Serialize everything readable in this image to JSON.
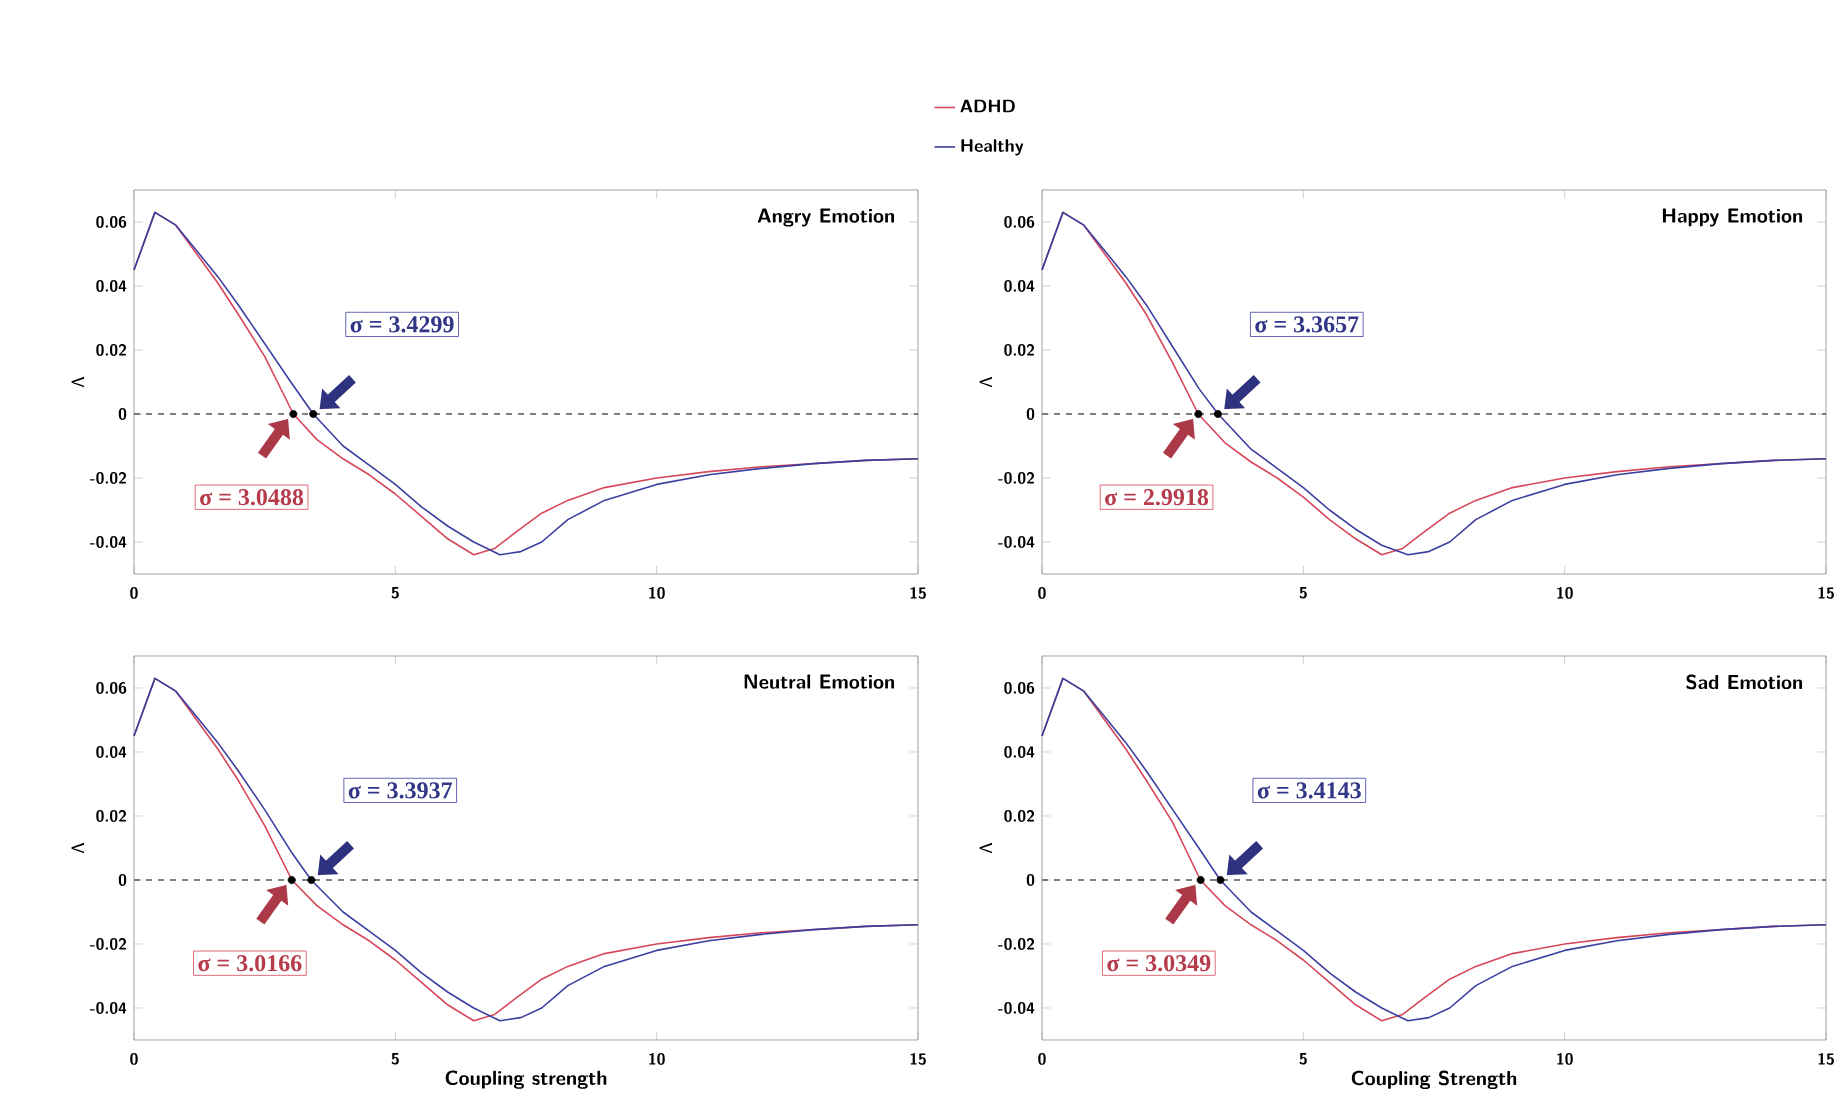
{
  "chart_data": [
    {
      "type": "line",
      "title": "Angry Emotion",
      "ylabel": "Λ",
      "xlim": [
        0,
        15
      ],
      "ylim": [
        -0.05,
        0.07
      ],
      "xticks": [
        0,
        5,
        10,
        15
      ],
      "yticks": [
        -0.04,
        -0.02,
        0,
        0.02,
        0.04,
        0.06
      ],
      "legend": "top",
      "marker": "none",
      "line_style": "solid",
      "ref_lines": [
        {
          "axis": "y",
          "value": 0,
          "color": "#555555",
          "line_style": "dashed"
        }
      ],
      "annotations": [
        "σ = 3.0488",
        "σ = 3.4299"
      ],
      "series": [
        {
          "name": "ADHD",
          "color": "#d6475a",
          "x": [
            0,
            0.4,
            0.8,
            1.2,
            1.6,
            2.0,
            2.5,
            3.05,
            3.5,
            4,
            4.5,
            5,
            5.5,
            6,
            6.5,
            6.9,
            7.3,
            7.8,
            8.3,
            9,
            10,
            11,
            12,
            13,
            14,
            15
          ],
          "values": [
            0.045,
            0.063,
            0.059,
            0.05,
            0.041,
            0.031,
            0.018,
            0,
            -0.008,
            -0.014,
            -0.019,
            -0.025,
            -0.032,
            -0.039,
            -0.044,
            -0.042,
            -0.037,
            -0.031,
            -0.027,
            -0.023,
            -0.02,
            -0.018,
            -0.0165,
            -0.0155,
            -0.0145,
            -0.014
          ]
        },
        {
          "name": "Healthy",
          "color": "#3b3f9f",
          "x": [
            0,
            0.4,
            0.8,
            1.2,
            1.6,
            2.0,
            2.5,
            3.0,
            3.43,
            4,
            4.5,
            5,
            5.5,
            6,
            6.5,
            7.0,
            7.4,
            7.8,
            8.3,
            9,
            10,
            11,
            12,
            13,
            14,
            15
          ],
          "values": [
            0.045,
            0.063,
            0.059,
            0.051,
            0.043,
            0.034,
            0.022,
            0.01,
            0,
            -0.01,
            -0.016,
            -0.022,
            -0.029,
            -0.035,
            -0.04,
            -0.044,
            -0.043,
            -0.04,
            -0.033,
            -0.027,
            -0.022,
            -0.019,
            -0.017,
            -0.0155,
            -0.0145,
            -0.014
          ]
        },
        {
          "type": "scatter",
          "color": "#000000",
          "x": [
            3.0488,
            3.4299
          ],
          "values": [
            0,
            0
          ]
        }
      ]
    },
    {
      "type": "line",
      "title": "Happy Emotion",
      "ylabel": "Λ",
      "xlim": [
        0,
        15
      ],
      "ylim": [
        -0.05,
        0.07
      ],
      "xticks": [
        0,
        5,
        10,
        15
      ],
      "yticks": [
        -0.04,
        -0.02,
        0,
        0.02,
        0.04,
        0.06
      ],
      "marker": "none",
      "line_style": "solid",
      "ref_lines": [
        {
          "axis": "y",
          "value": 0,
          "color": "#555555",
          "line_style": "dashed"
        }
      ],
      "annotations": [
        "σ = 2.9918",
        "σ = 3.3657"
      ],
      "series": [
        {
          "color": "#d6475a",
          "x": [
            0,
            0.4,
            0.8,
            1.2,
            1.6,
            2.0,
            2.5,
            2.99,
            3.5,
            4,
            4.5,
            5,
            5.5,
            6,
            6.5,
            6.9,
            7.3,
            7.8,
            8.3,
            9,
            10,
            11,
            12,
            13,
            14,
            15
          ],
          "values": [
            0.045,
            0.063,
            0.059,
            0.05,
            0.041,
            0.031,
            0.016,
            0,
            -0.009,
            -0.015,
            -0.02,
            -0.026,
            -0.033,
            -0.039,
            -0.044,
            -0.042,
            -0.037,
            -0.031,
            -0.027,
            -0.023,
            -0.02,
            -0.018,
            -0.0165,
            -0.0155,
            -0.0145,
            -0.014
          ]
        },
        {
          "color": "#3b3f9f",
          "x": [
            0,
            0.4,
            0.8,
            1.2,
            1.6,
            2.0,
            2.5,
            3.0,
            3.37,
            4,
            4.5,
            5,
            5.5,
            6,
            6.5,
            7.0,
            7.4,
            7.8,
            8.3,
            9,
            10,
            11,
            12,
            13,
            14,
            15
          ],
          "values": [
            0.045,
            0.063,
            0.059,
            0.051,
            0.043,
            0.034,
            0.021,
            0.008,
            0,
            -0.011,
            -0.017,
            -0.023,
            -0.03,
            -0.036,
            -0.041,
            -0.044,
            -0.043,
            -0.04,
            -0.033,
            -0.027,
            -0.022,
            -0.019,
            -0.017,
            -0.0155,
            -0.0145,
            -0.014
          ]
        },
        {
          "type": "scatter",
          "color": "#000000",
          "x": [
            2.9918,
            3.3657
          ],
          "values": [
            0,
            0
          ]
        }
      ]
    },
    {
      "type": "line",
      "title": "Neutral Emotion",
      "xlabel": "Coupling strength",
      "ylabel": "Λ",
      "xlim": [
        0,
        15
      ],
      "ylim": [
        -0.05,
        0.07
      ],
      "xticks": [
        0,
        5,
        10,
        15
      ],
      "yticks": [
        -0.04,
        -0.02,
        0,
        0.02,
        0.04,
        0.06
      ],
      "marker": "none",
      "line_style": "solid",
      "ref_lines": [
        {
          "axis": "y",
          "value": 0,
          "color": "#555555",
          "line_style": "dashed"
        }
      ],
      "annotations": [
        "σ = 3.0166",
        "σ = 3.3937"
      ],
      "series": [
        {
          "color": "#d6475a",
          "x": [
            0,
            0.4,
            0.8,
            1.2,
            1.6,
            2.0,
            2.5,
            3.02,
            3.5,
            4,
            4.5,
            5,
            5.5,
            6,
            6.5,
            6.9,
            7.3,
            7.8,
            8.3,
            9,
            10,
            11,
            12,
            13,
            14,
            15
          ],
          "values": [
            0.045,
            0.063,
            0.059,
            0.05,
            0.041,
            0.031,
            0.017,
            0,
            -0.008,
            -0.014,
            -0.019,
            -0.025,
            -0.032,
            -0.039,
            -0.044,
            -0.042,
            -0.037,
            -0.031,
            -0.027,
            -0.023,
            -0.02,
            -0.018,
            -0.0165,
            -0.0155,
            -0.0145,
            -0.014
          ]
        },
        {
          "color": "#3b3f9f",
          "x": [
            0,
            0.4,
            0.8,
            1.2,
            1.6,
            2.0,
            2.5,
            3.0,
            3.39,
            4,
            4.5,
            5,
            5.5,
            6,
            6.5,
            7.0,
            7.4,
            7.8,
            8.3,
            9,
            10,
            11,
            12,
            13,
            14,
            15
          ],
          "values": [
            0.045,
            0.063,
            0.059,
            0.051,
            0.043,
            0.034,
            0.022,
            0.009,
            0,
            -0.01,
            -0.016,
            -0.022,
            -0.029,
            -0.035,
            -0.04,
            -0.044,
            -0.043,
            -0.04,
            -0.033,
            -0.027,
            -0.022,
            -0.019,
            -0.017,
            -0.0155,
            -0.0145,
            -0.014
          ]
        },
        {
          "type": "scatter",
          "color": "#000000",
          "x": [
            3.0166,
            3.3937
          ],
          "values": [
            0,
            0
          ]
        }
      ]
    },
    {
      "type": "line",
      "title": "Sad Emotion",
      "xlabel": "Coupling Strength",
      "ylabel": "Λ",
      "xlim": [
        0,
        15
      ],
      "ylim": [
        -0.05,
        0.07
      ],
      "xticks": [
        0,
        5,
        10,
        15
      ],
      "yticks": [
        -0.04,
        -0.02,
        0,
        0.02,
        0.04,
        0.06
      ],
      "marker": "none",
      "line_style": "solid",
      "ref_lines": [
        {
          "axis": "y",
          "value": 0,
          "color": "#555555",
          "line_style": "dashed"
        }
      ],
      "annotations": [
        "σ = 3.0349",
        "σ = 3.4143"
      ],
      "series": [
        {
          "color": "#d6475a",
          "x": [
            0,
            0.4,
            0.8,
            1.2,
            1.6,
            2.0,
            2.5,
            3.03,
            3.5,
            4,
            4.5,
            5,
            5.5,
            6,
            6.5,
            6.9,
            7.3,
            7.8,
            8.3,
            9,
            10,
            11,
            12,
            13,
            14,
            15
          ],
          "values": [
            0.045,
            0.063,
            0.059,
            0.05,
            0.041,
            0.031,
            0.018,
            0,
            -0.008,
            -0.014,
            -0.019,
            -0.025,
            -0.032,
            -0.039,
            -0.044,
            -0.042,
            -0.037,
            -0.031,
            -0.027,
            -0.023,
            -0.02,
            -0.018,
            -0.0165,
            -0.0155,
            -0.0145,
            -0.014
          ]
        },
        {
          "color": "#3b3f9f",
          "x": [
            0,
            0.4,
            0.8,
            1.2,
            1.6,
            2.0,
            2.5,
            3.0,
            3.41,
            4,
            4.5,
            5,
            5.5,
            6,
            6.5,
            7.0,
            7.4,
            7.8,
            8.3,
            9,
            10,
            11,
            12,
            13,
            14,
            15
          ],
          "values": [
            0.045,
            0.063,
            0.059,
            0.051,
            0.043,
            0.034,
            0.022,
            0.01,
            0,
            -0.01,
            -0.016,
            -0.022,
            -0.029,
            -0.035,
            -0.04,
            -0.044,
            -0.043,
            -0.04,
            -0.033,
            -0.027,
            -0.022,
            -0.019,
            -0.017,
            -0.0155,
            -0.0145,
            -0.014
          ]
        },
        {
          "type": "scatter",
          "color": "#000000",
          "x": [
            3.0349,
            3.4143
          ],
          "values": [
            0,
            0
          ]
        }
      ]
    }
  ]
}
